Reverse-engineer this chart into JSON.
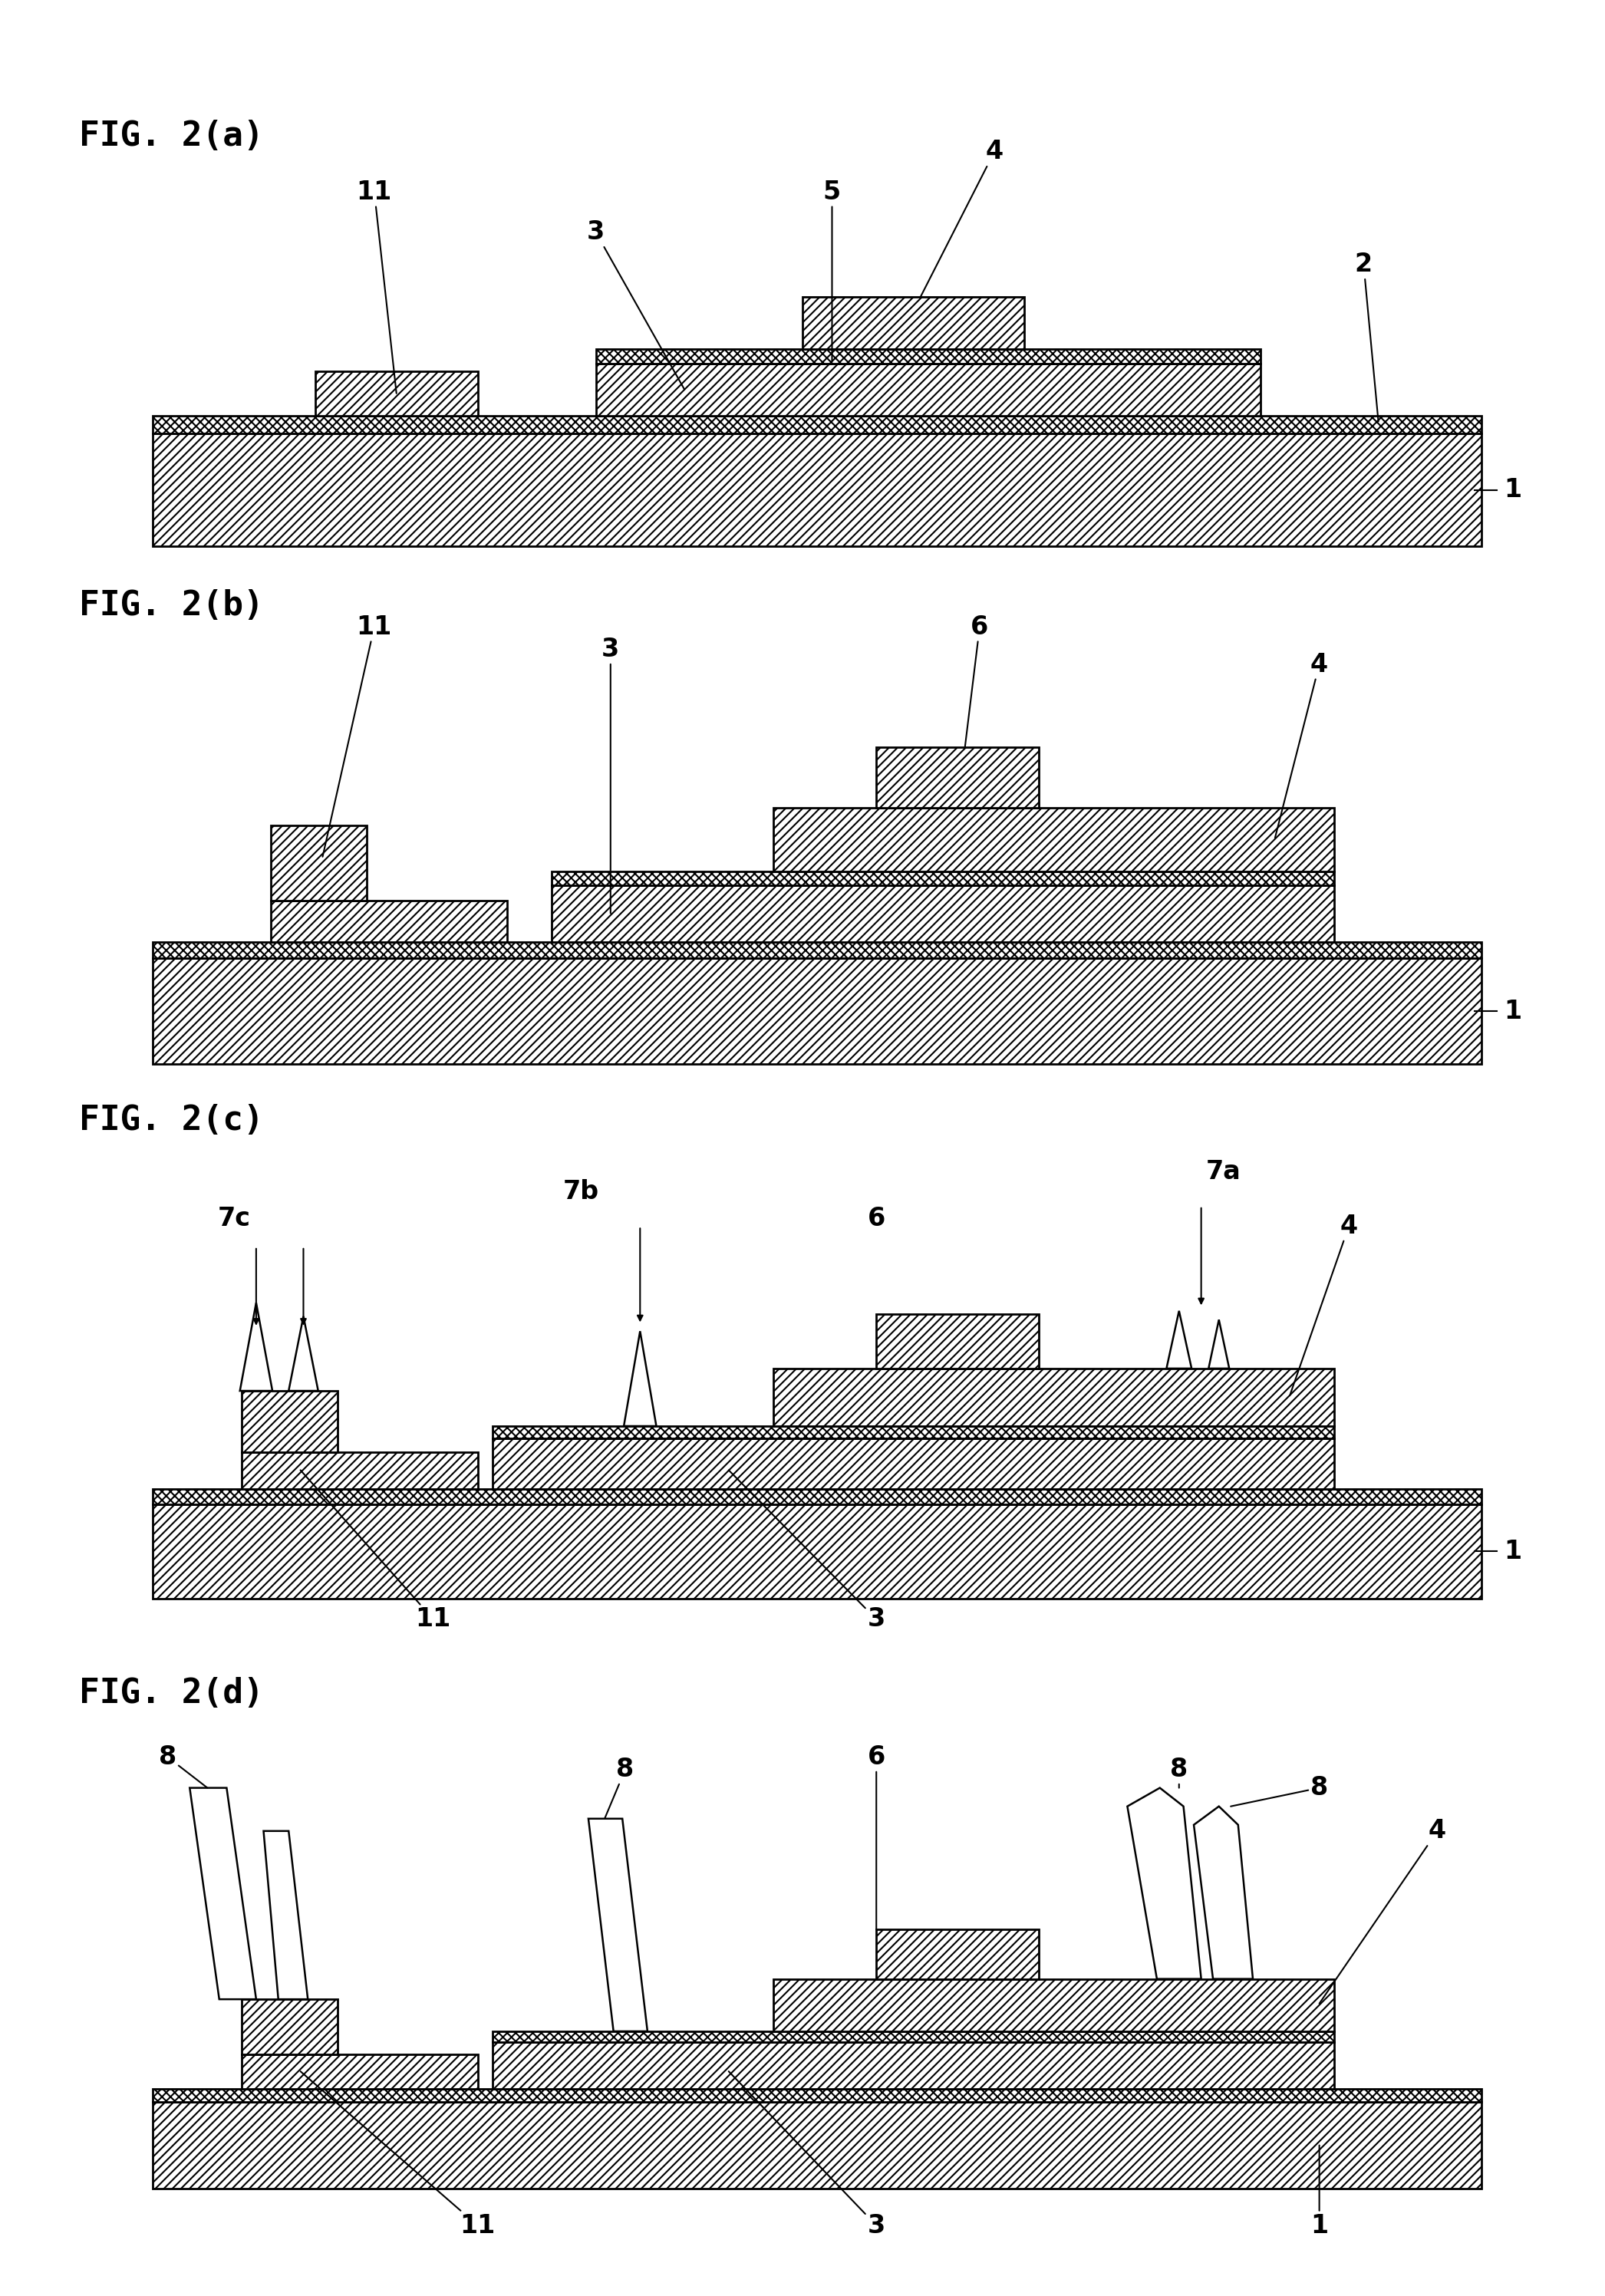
{
  "background_color": "#ffffff",
  "fig_labels": [
    "FIG. 2(a)",
    "FIG. 2(b)",
    "FIG. 2(c)",
    "FIG. 2(d)"
  ],
  "label_fontsize": 32,
  "annotation_fontsize": 24,
  "lw": 2.0
}
